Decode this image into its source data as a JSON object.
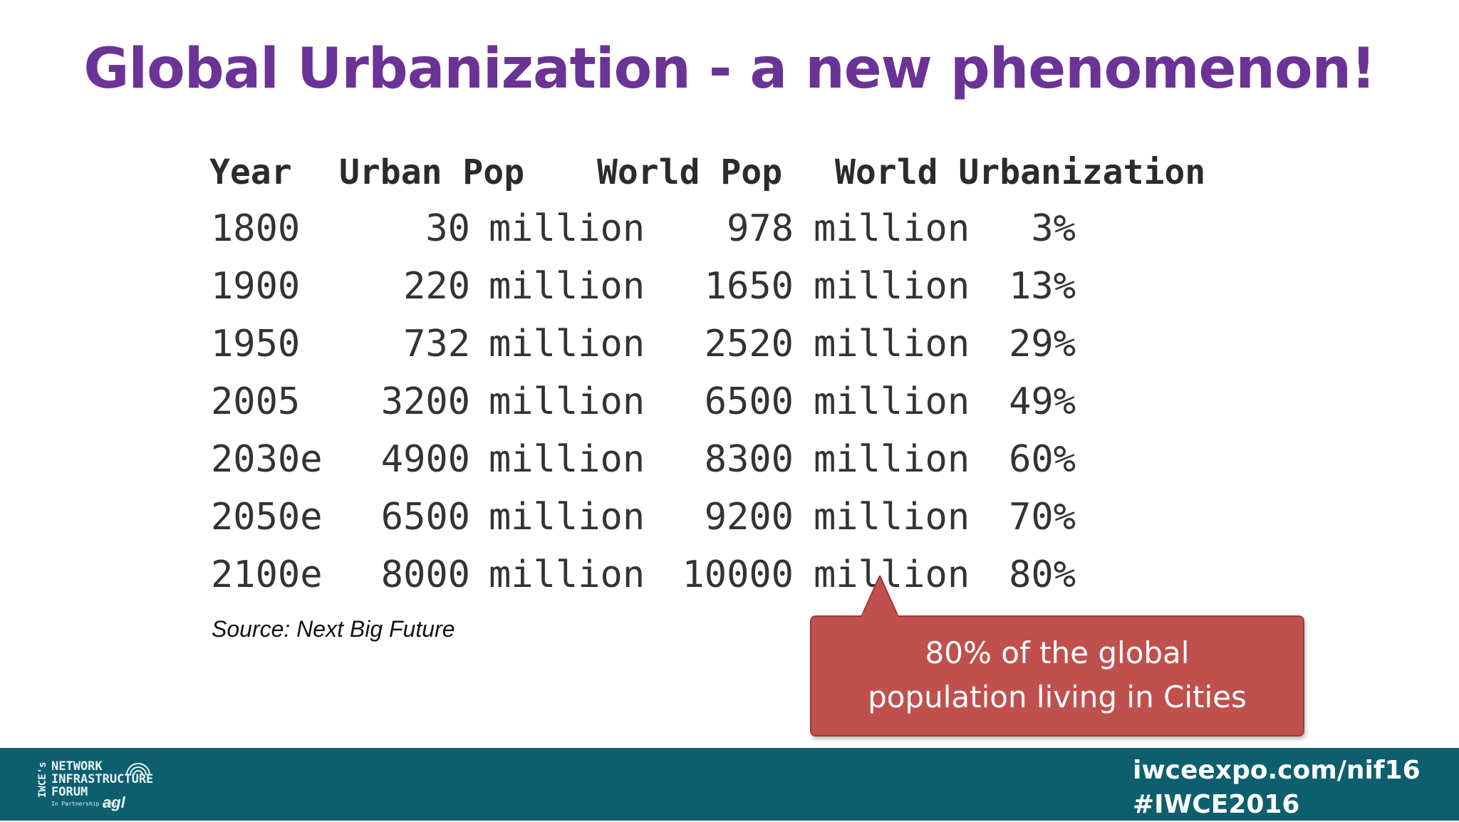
{
  "title": "Global Urbanization - a new phenomenon!",
  "table": {
    "headers": [
      "Year",
      "Urban Pop",
      "World Pop",
      "World Urbanization"
    ],
    "rows": [
      {
        "year": "1800",
        "urban_num": "30",
        "urban_unit": "million",
        "world_num": "978",
        "world_unit": "million",
        "pct": "3%"
      },
      {
        "year": "1900",
        "urban_num": "220",
        "urban_unit": "million",
        "world_num": "1650",
        "world_unit": "million",
        "pct": "13%"
      },
      {
        "year": "1950",
        "urban_num": "732",
        "urban_unit": "million",
        "world_num": "2520",
        "world_unit": "million",
        "pct": "29%"
      },
      {
        "year": "2005",
        "urban_num": "3200",
        "urban_unit": "million",
        "world_num": "6500",
        "world_unit": "million",
        "pct": "49%"
      },
      {
        "year": "2030e",
        "urban_num": "4900",
        "urban_unit": "million",
        "world_num": "8300",
        "world_unit": "million",
        "pct": "60%"
      },
      {
        "year": "2050e",
        "urban_num": "6500",
        "urban_unit": "million",
        "world_num": "9200",
        "world_unit": "million",
        "pct": "70%"
      },
      {
        "year": "2100e",
        "urban_num": "8000",
        "urban_unit": "million",
        "world_num": "10000",
        "world_unit": "million",
        "pct": "80%"
      }
    ]
  },
  "source": "Source: Next Big Future",
  "callout": {
    "line1": "80% of the global",
    "line2": "population living in Cities",
    "color": "#c0504d"
  },
  "footer": {
    "logo": {
      "iwce": "IWCE's",
      "line1": "NETWORK",
      "line2": "INFRASTRUCTURE",
      "line3": "FORUM",
      "partner": "In Partnership with",
      "agl": "agl"
    },
    "url": "iwceexpo.com/nif16",
    "hashtag": "#IWCE2016",
    "bar_color": "#0d5f6e"
  },
  "colors": {
    "title": "#6b3396"
  }
}
